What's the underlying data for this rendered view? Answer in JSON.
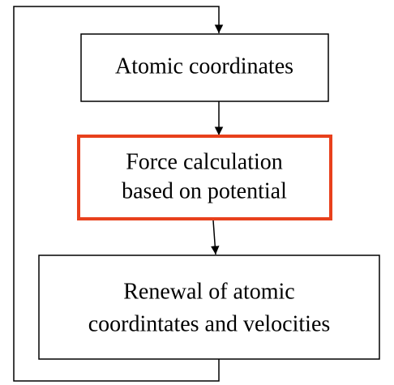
{
  "nodes": [
    {
      "lines": [
        "Atomic coordinates"
      ]
    },
    {
      "lines": [
        "Force calculation",
        "based on potential"
      ]
    },
    {
      "lines": [
        "Renewal of atomic",
        "coordintates and velocities"
      ]
    }
  ]
}
